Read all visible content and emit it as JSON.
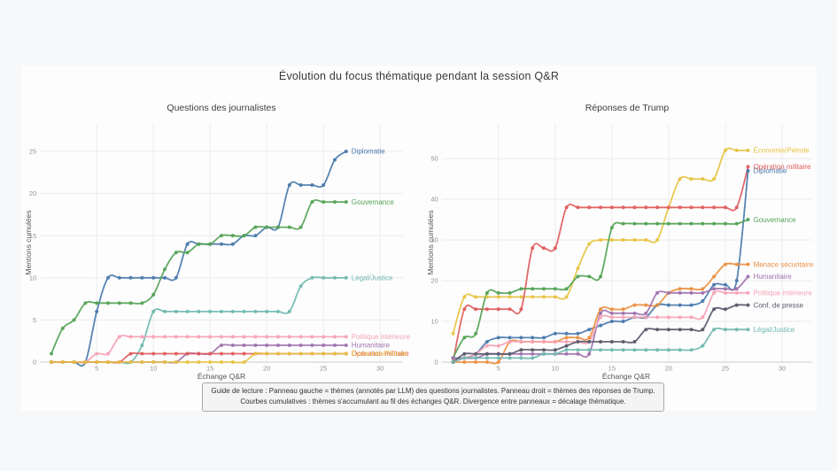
{
  "figure": {
    "title": "Évolution du focus thématique pendant la session Q&R",
    "caption_line1": "Guide de lecture : Panneau gauche = thèmes (annotés par LLM) des questions journalistes. Panneau droit = thèmes des réponses de Trump.",
    "caption_line2": "Courbes cumulatives : thèmes s'accumulant au fil des échanges Q&R. Divergence entre panneaux = décalage thématique."
  },
  "chart_data": [
    {
      "type": "line",
      "panel": "left",
      "title": "Questions des journalistes",
      "xlabel": "Échange Q&R",
      "ylabel": "Mentions cumulées",
      "x_start": 1,
      "xticks": [
        5,
        10,
        15,
        20,
        25,
        30
      ],
      "yticks": [
        0,
        5,
        10,
        15,
        20,
        25
      ],
      "xlim": [
        0,
        32
      ],
      "ylim": [
        0,
        28.25
      ],
      "grid": true,
      "legend_position": "end-of-line-labels",
      "series": [
        {
          "name": "Diplomatie",
          "color": "#4a79ab",
          "values": [
            0,
            0,
            0,
            0,
            6,
            10,
            10,
            10,
            10,
            10,
            10,
            10,
            14,
            14,
            14,
            14,
            14,
            15,
            15,
            16,
            16,
            21,
            21,
            21,
            21,
            24,
            25
          ]
        },
        {
          "name": "Gouvernance",
          "color": "#55a356",
          "values": [
            1,
            4,
            5,
            7,
            7,
            7,
            7,
            7,
            7,
            8,
            11,
            13,
            13,
            14,
            14,
            15,
            15,
            15,
            16,
            16,
            16,
            16,
            16,
            19,
            19,
            19,
            19
          ]
        },
        {
          "name": "Légal/Justice",
          "color": "#70b8b0",
          "values": [
            0,
            0,
            0,
            0,
            0,
            0,
            0,
            0,
            2,
            6,
            6,
            6,
            6,
            6,
            6,
            6,
            6,
            6,
            6,
            6,
            6,
            6,
            9,
            10,
            10,
            10,
            10
          ]
        },
        {
          "name": "Politique intérieure",
          "color": "#f5a3b5",
          "values": [
            0,
            0,
            0,
            0,
            1,
            1,
            3,
            3,
            3,
            3,
            3,
            3,
            3,
            3,
            3,
            3,
            3,
            3,
            3,
            3,
            3,
            3,
            3,
            3,
            3,
            3,
            3
          ]
        },
        {
          "name": "Humanitaire",
          "color": "#a173ae",
          "values": [
            0,
            0,
            0,
            0,
            0,
            0,
            0,
            0,
            0,
            0,
            0,
            0,
            1,
            1,
            1,
            2,
            2,
            2,
            2,
            2,
            2,
            2,
            2,
            2,
            2,
            2,
            2
          ]
        },
        {
          "name": "Opération militaire",
          "color": "#e05c5c",
          "values": [
            0,
            0,
            0,
            0,
            0,
            0,
            0,
            1,
            1,
            1,
            1,
            1,
            1,
            1,
            1,
            1,
            1,
            1,
            1,
            1,
            1,
            1,
            1,
            1,
            1,
            1,
            1
          ]
        },
        {
          "name": "Économie/Pétrole",
          "color": "#e7c342",
          "values": [
            0,
            0,
            0,
            0,
            0,
            0,
            0,
            0,
            0,
            0,
            0,
            0,
            0,
            0,
            0,
            0,
            0,
            0,
            1,
            1,
            1,
            1,
            1,
            1,
            1,
            1,
            1
          ]
        }
      ]
    },
    {
      "type": "line",
      "panel": "right",
      "title": "Réponses de Trump",
      "xlabel": "Échange Q&R",
      "ylabel": "Mentions cumulées",
      "x_start": 1,
      "xticks": [
        5,
        10,
        15,
        20,
        25,
        30
      ],
      "yticks": [
        0,
        10,
        20,
        30,
        40,
        50
      ],
      "xlim": [
        0,
        32.6
      ],
      "ylim": [
        0,
        58.5
      ],
      "grid": true,
      "legend_position": "end-of-line-labels",
      "series": [
        {
          "name": "Économie/Pétrole",
          "color": "#e7c342",
          "values": [
            7,
            16,
            16,
            16,
            16,
            16,
            16,
            16,
            16,
            16,
            16,
            23,
            29,
            30,
            30,
            30,
            30,
            30,
            30,
            38,
            45,
            45,
            45,
            45,
            52,
            52,
            52
          ]
        },
        {
          "name": "Diplomatie",
          "color": "#4a79ab",
          "values": [
            1,
            1,
            2,
            5,
            6,
            6,
            6,
            6,
            6,
            7,
            7,
            7,
            8,
            9,
            10,
            10,
            11,
            11,
            14,
            14,
            14,
            14,
            15,
            19,
            19,
            20,
            47
          ]
        },
        {
          "name": "Opération militaire",
          "color": "#e05c5c",
          "values": [
            0,
            13,
            13,
            13,
            13,
            13,
            13,
            28,
            28,
            28,
            38,
            38,
            38,
            38,
            38,
            38,
            38,
            38,
            38,
            38,
            38,
            38,
            38,
            38,
            38,
            38,
            48
          ]
        },
        {
          "name": "Gouvernance",
          "color": "#55a356",
          "values": [
            1,
            6,
            7,
            17,
            17,
            17,
            18,
            18,
            18,
            18,
            18,
            21,
            21,
            21,
            33,
            34,
            34,
            34,
            34,
            34,
            34,
            34,
            34,
            34,
            34,
            34,
            35
          ]
        },
        {
          "name": "Menace sécuritaire",
          "color": "#ec9040",
          "values": [
            0,
            0,
            0,
            0,
            0,
            5,
            5,
            5,
            5,
            5,
            6,
            6,
            6,
            13,
            13,
            13,
            14,
            14,
            14,
            17,
            18,
            18,
            18,
            21,
            24,
            24,
            24
          ]
        },
        {
          "name": "Humanitaire",
          "color": "#a173ae",
          "values": [
            1,
            1,
            1,
            2,
            2,
            2,
            2,
            2,
            2,
            2,
            2,
            2,
            2,
            12,
            12,
            12,
            12,
            12,
            17,
            17,
            17,
            17,
            17,
            18,
            18,
            18,
            21
          ]
        },
        {
          "name": "Politique intérieure",
          "color": "#f5a3b5",
          "values": [
            0,
            1,
            2,
            4,
            4,
            5,
            5,
            5,
            5,
            5,
            5,
            5,
            5,
            11,
            11,
            11,
            11,
            11,
            11,
            11,
            11,
            11,
            11,
            17,
            17,
            17,
            17
          ]
        },
        {
          "name": "Conf. de presse",
          "color": "#585a6b",
          "values": [
            0,
            2,
            2,
            2,
            2,
            2,
            3,
            3,
            3,
            3,
            4,
            5,
            5,
            5,
            5,
            5,
            5,
            8,
            8,
            8,
            8,
            8,
            8,
            13,
            13,
            14,
            14
          ]
        },
        {
          "name": "Légal/Justice",
          "color": "#70b8b0",
          "values": [
            0,
            1,
            1,
            1,
            1,
            1,
            1,
            1,
            2,
            2,
            3,
            3,
            3,
            3,
            3,
            3,
            3,
            3,
            3,
            3,
            3,
            3,
            4,
            8,
            8,
            8,
            8
          ]
        }
      ]
    }
  ],
  "style": {
    "grid_color": "#ececec",
    "spine_color": "#cccccc",
    "tick_color": "#919191",
    "page_bg": "#f7f8fa",
    "card_bg": "#fdfdfe"
  }
}
